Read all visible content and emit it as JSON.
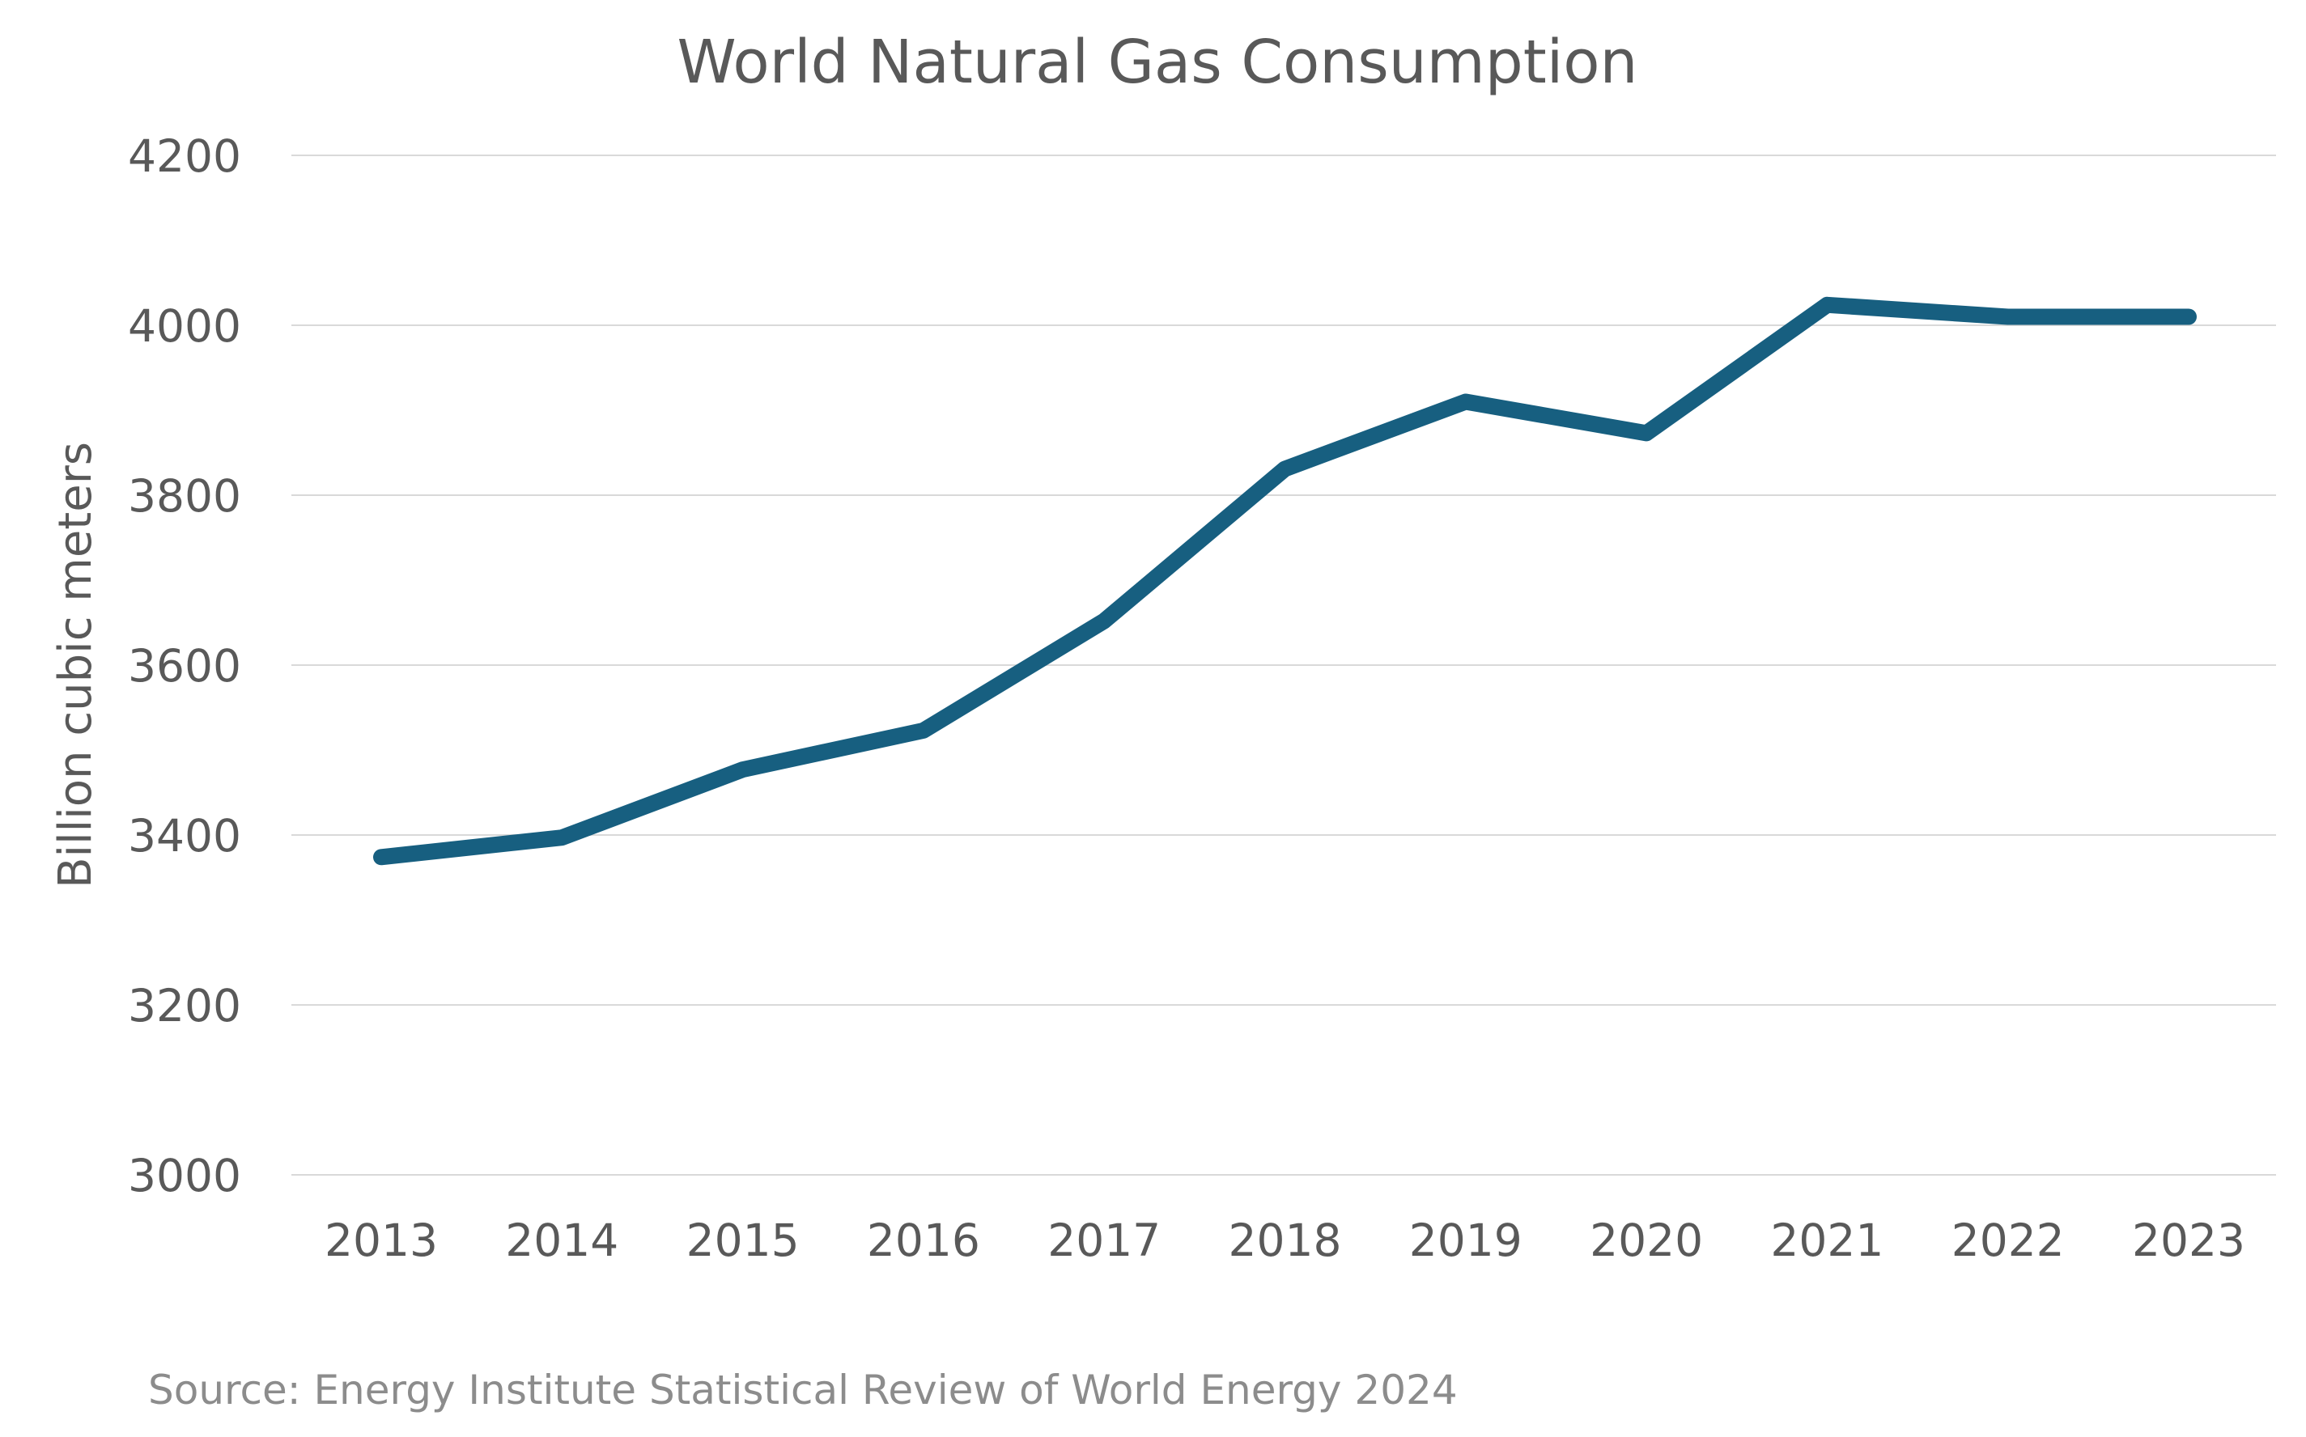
{
  "chart_data": {
    "type": "line",
    "title": "World Natural Gas Consumption",
    "xlabel": "",
    "ylabel": "Billion cubic meters",
    "categories": [
      "2013",
      "2014",
      "2015",
      "2016",
      "2017",
      "2018",
      "2019",
      "2020",
      "2021",
      "2022",
      "2023"
    ],
    "values": [
      3374,
      3397,
      3477,
      3523,
      3652,
      3831,
      3910,
      3873,
      4024,
      4010,
      4010
    ],
    "ylim": [
      3000,
      4200
    ],
    "yticks": [
      "3000",
      "3200",
      "3400",
      "3600",
      "3800",
      "4000",
      "4200"
    ],
    "grid": true,
    "line_color": "#175f80",
    "source": "Source: Energy Institute Statistical Review of World Energy 2024"
  }
}
